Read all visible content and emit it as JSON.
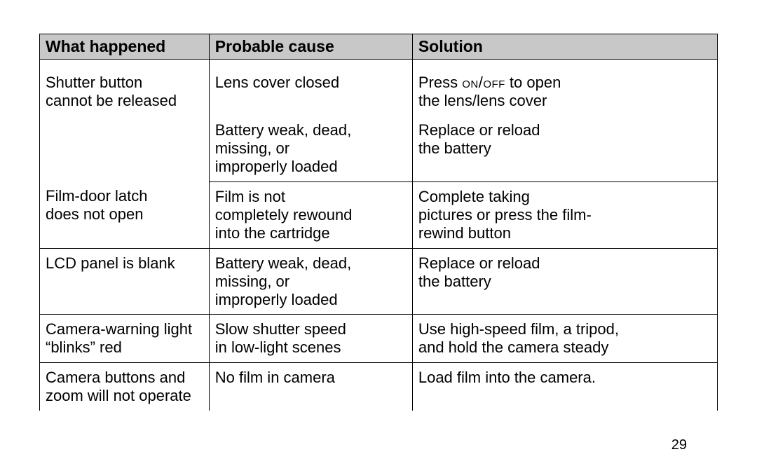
{
  "page_number": "29",
  "table": {
    "header_bg": "#c8c8c8",
    "border_color": "#000000",
    "text_color": "#000000",
    "font_size_header": 23,
    "font_size_body": 22,
    "columns": [
      {
        "label": "What happened",
        "width_pct": 25
      },
      {
        "label": "Probable cause",
        "width_pct": 30
      },
      {
        "label": "Solution",
        "width_pct": 45
      }
    ],
    "rows": [
      {
        "what": "Shutter button\ncannot be released",
        "cause": "Lens cover closed",
        "solution_pre": "Press ",
        "solution_sc": "on/off",
        "solution_post": " to open\nthe lens/lens cover",
        "what_rowspan": 2,
        "sep_below": false,
        "first": true
      },
      {
        "what": "",
        "cause": "Battery weak, dead,\nmissing, or\nimproperly loaded",
        "solution": "Replace or reload\nthe battery",
        "sep_below": true
      },
      {
        "what": "Film-door latch\ndoes not open",
        "cause": "Film is not\ncompletely rewound\ninto the cartridge",
        "solution": "Complete taking\npictures or press the film-\nrewind button",
        "sep_below": true
      },
      {
        "what": "LCD panel is blank",
        "cause": "Battery weak, dead,\nmissing, or\nimproperly loaded",
        "solution": "Replace or reload\nthe battery",
        "sep_below": true
      },
      {
        "what": "Camera-warning light\n“blinks” red",
        "cause": "Slow shutter speed\nin low-light scenes",
        "solution": "Use high-speed film, a tripod,\nand hold the camera steady",
        "sep_below": true
      },
      {
        "what": "Camera buttons and\nzoom will not operate",
        "cause": "No film in camera",
        "solution": "Load film into the camera.",
        "sep_below": false
      }
    ]
  }
}
